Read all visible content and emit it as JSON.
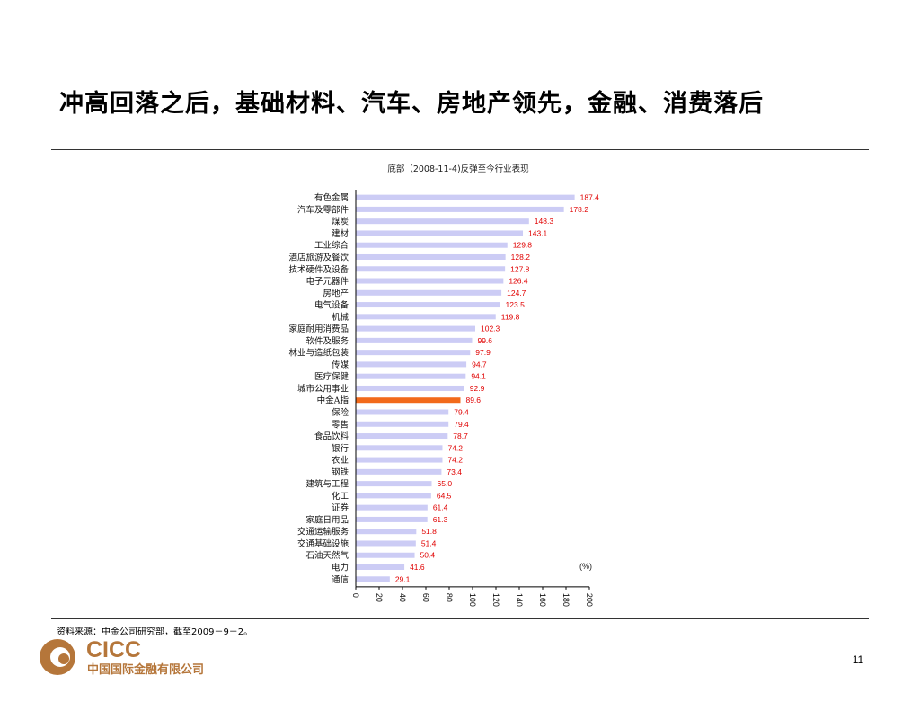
{
  "slide": {
    "title": "冲高回落之后，基础材料、汽车、房地产领先，金融、消费落后",
    "source": "资料来源：中金公司研究部，截至2009－9－2。",
    "page_number": "11"
  },
  "logo": {
    "wordmark": "CICC",
    "company": "中国国际金融有限公司",
    "color": "#b5763a"
  },
  "colors": {
    "bar": "#ccccf5",
    "highlight_bar": "#f26a1b",
    "value_label": "#e00000"
  },
  "chart_data": {
    "type": "bar",
    "orientation": "horizontal",
    "title": "底部（2008-11-4)反弹至今行业表现",
    "unit_label": "(%)",
    "xlim": [
      0,
      200
    ],
    "x_ticks": [
      "0",
      "20",
      "40",
      "60",
      "80",
      "100",
      "120",
      "140",
      "160",
      "180",
      "200"
    ],
    "highlight": "中金A指",
    "categories": [
      "有色金属",
      "汽车及零部件",
      "煤炭",
      "建材",
      "工业综合",
      "酒店旅游及餐饮",
      "技术硬件及设备",
      "电子元器件",
      "房地产",
      "电气设备",
      "机械",
      "家庭耐用消费品",
      "软件及服务",
      "林业与造纸包装",
      "传媒",
      "医疗保健",
      "城市公用事业",
      "中金A指",
      "保险",
      "零售",
      "食品饮料",
      "银行",
      "农业",
      "钢铁",
      "建筑与工程",
      "化工",
      "证券",
      "家庭日用品",
      "交通运输服务",
      "交通基础设施",
      "石油天然气",
      "电力",
      "通信"
    ],
    "values": [
      187.4,
      178.2,
      148.3,
      143.1,
      129.8,
      128.2,
      127.8,
      126.4,
      124.7,
      123.5,
      119.8,
      102.3,
      99.6,
      97.9,
      94.7,
      94.1,
      92.9,
      89.6,
      79.4,
      79.4,
      78.7,
      74.2,
      74.2,
      73.4,
      65.0,
      64.5,
      61.4,
      61.3,
      51.8,
      51.4,
      50.4,
      41.6,
      29.1
    ],
    "value_labels": [
      "187.4",
      "178.2",
      "148.3",
      "143.1",
      "129.8",
      "128.2",
      "127.8",
      "126.4",
      "124.7",
      "123.5",
      "119.8",
      "102.3",
      "99.6",
      "97.9",
      "94.7",
      "94.1",
      "92.9",
      "89.6",
      "79.4",
      "79.4",
      "78.7",
      "74.2",
      "74.2",
      "73.4",
      "65.0",
      "64.5",
      "61.4",
      "61.3",
      "51.8",
      "51.4",
      "50.4",
      "41.6",
      "29.1"
    ]
  }
}
